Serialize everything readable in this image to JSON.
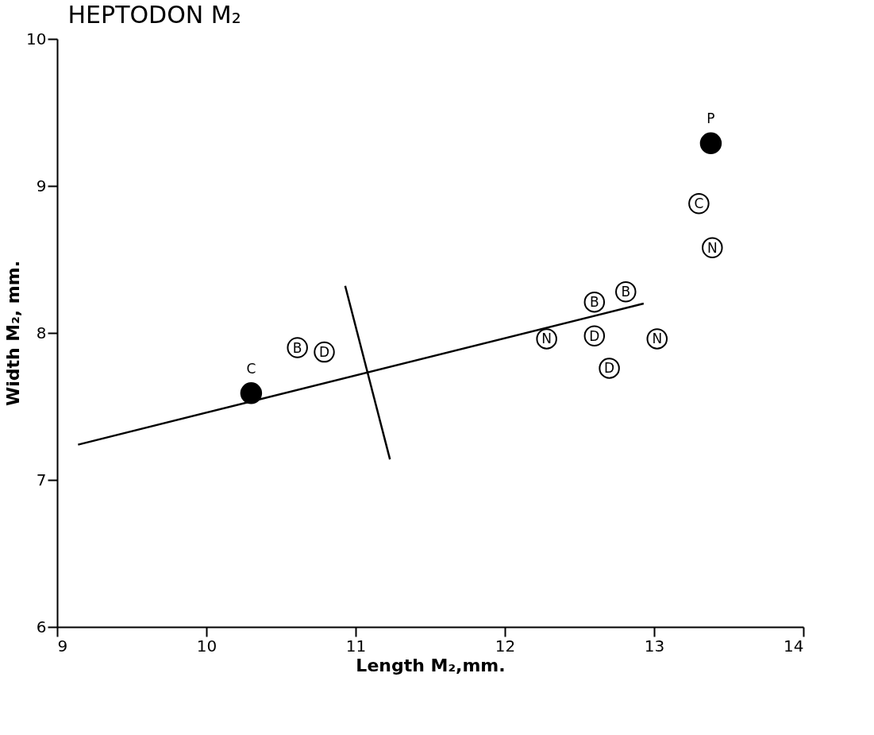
{
  "chart_data": {
    "type": "scatter",
    "title": "HEPTODON M₂",
    "xlabel": "Length M₂,mm.",
    "ylabel": "Width M₂, mm.",
    "xlim": [
      9,
      14
    ],
    "xticks": [
      9,
      10,
      11,
      12,
      13,
      14
    ],
    "ylim": [
      6,
      10
    ],
    "yticks": [
      6,
      7,
      8,
      9,
      10
    ],
    "grid": false,
    "marker": "circle",
    "series": [
      {
        "type": "line",
        "marker": "none",
        "color": "#000000",
        "x": [
          9.14,
          12.93
        ],
        "values": [
          7.24,
          8.2
        ]
      },
      {
        "type": "line",
        "marker": "none",
        "color": "#000000",
        "x": [
          10.93,
          11.23
        ],
        "values": [
          8.32,
          7.14
        ]
      },
      {
        "color": "#000000",
        "x": [
          10.3,
          13.38
        ],
        "values": [
          7.59,
          9.29
        ],
        "value_labels": [
          "C",
          "P"
        ]
      },
      {
        "color": "#ffffff",
        "x": [
          10.61,
          10.79,
          12.28,
          12.6,
          12.6,
          12.7,
          12.81,
          13.02,
          13.3,
          13.39
        ],
        "values": [
          7.9,
          7.87,
          7.96,
          8.21,
          7.98,
          7.76,
          8.28,
          7.96,
          8.88,
          8.58
        ],
        "value_labels": [
          "B",
          "D",
          "N",
          "B",
          "D",
          "D",
          "B",
          "N",
          "C",
          "N"
        ]
      }
    ]
  }
}
